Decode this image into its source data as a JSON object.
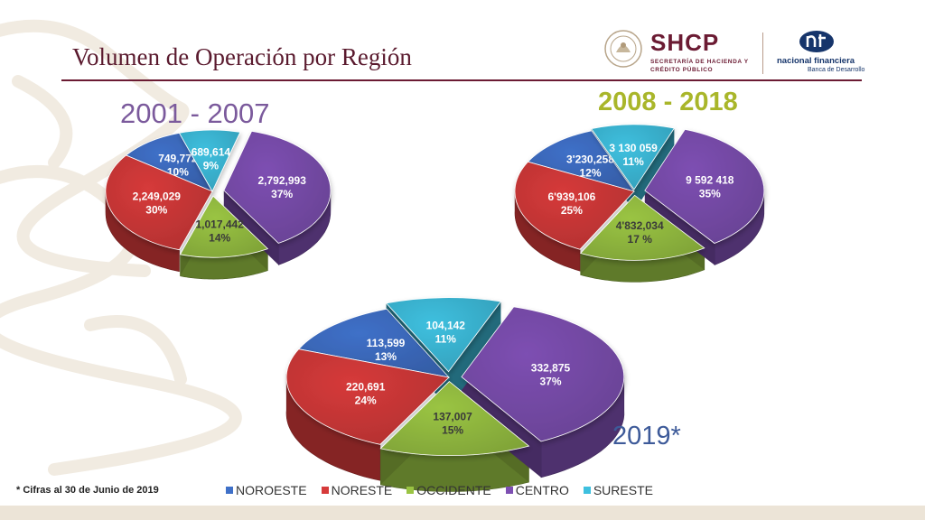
{
  "slide": {
    "title": "Volumen de Operación por Región",
    "footnote": "* Cifras al 30 de Junio de 2019"
  },
  "logos": {
    "shcp_name": "SHCP",
    "shcp_subtitle": "SECRETARÍA DE HACIENDA Y CRÉDITO PÚBLICO",
    "nafin_name": "nacional financiera",
    "nafin_subtitle": "Banca de Desarrollo"
  },
  "colors": {
    "NOROESTE": "#3f70c8",
    "NORESTE": "#d63a3a",
    "OCCIDENTE": "#9ac443",
    "CENTRO": "#7d4fb2",
    "SURESTE": "#3ec0df",
    "title": "#5a1a2e",
    "period_purple": "#7b5a9c",
    "period_olive": "#a9b62a",
    "period_blue": "#3d5a99"
  },
  "chart_data": [
    {
      "type": "pie",
      "title": "2001 - 2007",
      "categories": [
        "NOROESTE",
        "NORESTE",
        "OCCIDENTE",
        "CENTRO",
        "SURESTE"
      ],
      "values": [
        749772,
        2249029,
        1017442,
        2792993,
        689614
      ],
      "labels": [
        "749,772",
        "2,249,029",
        "1,017,442",
        "2,792,993",
        "689,614"
      ],
      "percent_labels": [
        "10%",
        "30%",
        "14%",
        "37%",
        "9%"
      ]
    },
    {
      "type": "pie",
      "title": "2008 - 2018",
      "categories": [
        "NOROESTE",
        "NORESTE",
        "OCCIDENTE",
        "CENTRO",
        "SURESTE"
      ],
      "values": [
        3230258,
        6939106,
        4832034,
        9592418,
        3130059
      ],
      "labels": [
        "3'230,258",
        "6'939,106",
        "4'832,034",
        "9 592 418",
        "3 130 059"
      ],
      "percent_labels": [
        "12%",
        "25%",
        "17 %",
        "35%",
        "11%"
      ]
    },
    {
      "type": "pie",
      "title": "2019*",
      "categories": [
        "NOROESTE",
        "NORESTE",
        "OCCIDENTE",
        "CENTRO",
        "SURESTE"
      ],
      "values": [
        113599,
        220691,
        137007,
        332875,
        104142
      ],
      "labels": [
        "113,599",
        "220,691",
        "137,007",
        "332,875",
        "104,142"
      ],
      "percent_labels": [
        "13%",
        "24%",
        "15%",
        "37%",
        "11%"
      ]
    }
  ],
  "legend": [
    "NOROESTE",
    "NORESTE",
    "OCCIDENTE",
    "CENTRO",
    "SURESTE"
  ]
}
